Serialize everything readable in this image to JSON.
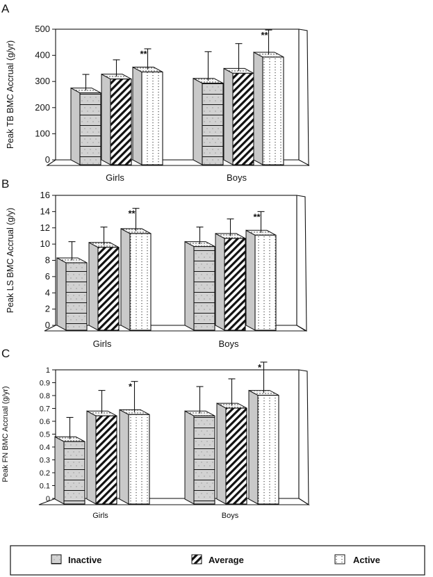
{
  "chart_data": [
    {
      "panel_label": "A",
      "type": "bar",
      "ylabel": "Peak TB BMC Accrual (g/yr)",
      "ylim": [
        0,
        500
      ],
      "yticks": [
        0,
        100,
        200,
        300,
        400,
        500
      ],
      "categories": [
        "Girls",
        "Boys"
      ],
      "series": [
        {
          "name": "Inactive",
          "values": [
            275,
            312
          ],
          "errors": [
            52,
            102
          ]
        },
        {
          "name": "Average",
          "values": [
            328,
            350
          ],
          "errors": [
            55,
            95
          ]
        },
        {
          "name": "Active",
          "values": [
            355,
            412
          ],
          "errors": [
            70,
            85
          ]
        }
      ],
      "annotations": [
        {
          "series": 2,
          "category": 0,
          "text": "**"
        },
        {
          "series": 2,
          "category": 1,
          "text": "**"
        }
      ]
    },
    {
      "panel_label": "B",
      "type": "bar",
      "ylabel": "Peak LS BMC Accrual (g/y)",
      "ylim": [
        0,
        16
      ],
      "yticks": [
        0,
        2,
        4,
        6,
        8,
        10,
        12,
        14,
        16
      ],
      "categories": [
        "Girls",
        "Boys"
      ],
      "series": [
        {
          "name": "Inactive",
          "values": [
            8.3,
            10.3
          ],
          "errors": [
            2.0,
            1.8
          ]
        },
        {
          "name": "Average",
          "values": [
            10.2,
            11.3
          ],
          "errors": [
            1.9,
            1.8
          ]
        },
        {
          "name": "Active",
          "values": [
            11.9,
            11.7
          ],
          "errors": [
            2.5,
            2.3
          ]
        }
      ],
      "annotations": [
        {
          "series": 2,
          "category": 0,
          "text": "**"
        },
        {
          "series": 2,
          "category": 1,
          "text": "**"
        }
      ]
    },
    {
      "panel_label": "C",
      "type": "bar",
      "ylabel": "Peak FN BMC Accrual (g/yr)",
      "ylim": [
        0,
        1
      ],
      "yticks": [
        0,
        0.1,
        0.2,
        0.3,
        0.4,
        0.5,
        0.6,
        0.7,
        0.8,
        0.9,
        1
      ],
      "categories": [
        "Girls",
        "Boys"
      ],
      "series": [
        {
          "name": "Inactive",
          "values": [
            0.48,
            0.68
          ],
          "errors": [
            0.15,
            0.19
          ]
        },
        {
          "name": "Average",
          "values": [
            0.68,
            0.74
          ],
          "errors": [
            0.16,
            0.19
          ]
        },
        {
          "name": "Active",
          "values": [
            0.69,
            0.84
          ],
          "errors": [
            0.22,
            0.22
          ]
        }
      ],
      "annotations": [
        {
          "series": 2,
          "category": 0,
          "text": "*"
        },
        {
          "series": 2,
          "category": 1,
          "text": "*"
        }
      ]
    }
  ],
  "legend": {
    "items": [
      "Inactive",
      "Average",
      "Active"
    ]
  }
}
